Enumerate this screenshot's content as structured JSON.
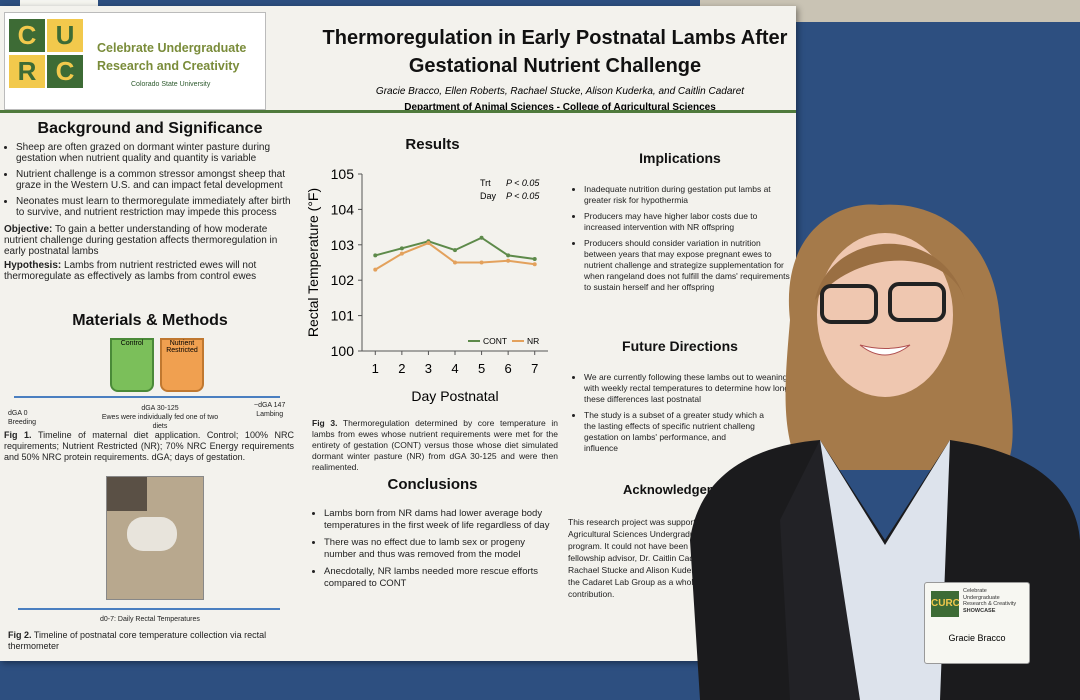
{
  "logo": {
    "letters": [
      "C",
      "U",
      "R",
      "C"
    ],
    "line1": "Celebrate Undergraduate",
    "line2": "Research and Creativity",
    "university": "Colorado State University"
  },
  "title": "Thermoregulation in Early Postnatal Lambs After Gestational Nutrient Challenge",
  "authors": "Gracie Bracco, Ellen Roberts, Rachael Stucke, Alison Kuderka, and Caitlin Cadaret",
  "department": "Department of Animal Sciences - College of Agricultural Sciences",
  "background": {
    "heading": "Background and Significance",
    "bullets": [
      "Sheep are often grazed on dormant winter pasture during gestation when nutrient quality and quantity is variable",
      "Nutrient challenge is a common stressor amongst sheep that graze in the Western U.S. and can impact fetal development",
      "Neonates must learn to thermoregulate immediately after birth to survive, and nutrient restriction may impede this process"
    ],
    "objective_label": "Objective:",
    "objective": "To gain a better understanding of how moderate nutrient challenge during gestation affects thermoregulation in early postnatal lambs",
    "hypothesis_label": "Hypothesis:",
    "hypothesis": "Lambs from nutrient restricted ewes will not thermoregulate as effectively as lambs from control ewes"
  },
  "methods": {
    "heading": "Materials & Methods",
    "buckets": [
      "Control",
      "Nutrient Restricted"
    ],
    "timeline": {
      "start": "dGA 0",
      "start_sub": "Breeding",
      "mid": "dGA 30-125",
      "mid_sub": "Ewes were individually fed one of two diets",
      "end": "~dGA 147",
      "end_sub": "Lambing"
    },
    "fig1_label": "Fig 1.",
    "fig1": "Timeline of maternal diet application. Control; 100% NRC requirements; Nutrient Restricted (NR); 70% NRC Energy requirements and 50% NRC protein requirements. dGA; days of gestation.",
    "timeline2": "d0-7: Daily Rectal Temperatures",
    "fig2_label": "Fig 2.",
    "fig2": "Timeline of postnatal core temperature collection via rectal thermometer"
  },
  "results": {
    "heading": "Results",
    "chart": {
      "type": "line",
      "x_label": "Day Postnatal",
      "y_label": "Rectal Temperature (°F)",
      "x": [
        1,
        2,
        3,
        4,
        5,
        6,
        7
      ],
      "series": [
        {
          "name": "CONT",
          "color": "#5d8a4a",
          "values": [
            102.7,
            102.9,
            103.1,
            102.85,
            103.2,
            102.7,
            102.6
          ]
        },
        {
          "name": "NR",
          "color": "#e3a15c",
          "values": [
            102.3,
            102.75,
            103.05,
            102.5,
            102.5,
            102.55,
            102.45
          ]
        }
      ],
      "annotations": [
        {
          "label": "Trt",
          "text": "P < 0.05"
        },
        {
          "label": "Day",
          "text": "P < 0.05"
        }
      ],
      "xlim": [
        0.5,
        7.5
      ],
      "xticks": [
        1,
        2,
        3,
        4,
        5,
        6,
        7
      ],
      "ylim": [
        100,
        105
      ],
      "yticks": [
        100,
        101,
        102,
        103,
        104,
        105
      ],
      "legend": "bottom-right"
    },
    "fig3_label": "Fig 3.",
    "fig3": "Thermoregulation determined by core temperature in lambs from ewes whose nutrient requirements were met for the entirety of gestation (CONT) versus those whose diet simulated dormant winter pasture (NR) from dGA 30-125 and were then realimented."
  },
  "conclusions": {
    "heading": "Conclusions",
    "bullets": [
      "Lambs born from NR dams had lower average body temperatures in the first week of life regardless of day",
      "There was no effect due to lamb sex or progeny number and thus was removed from the model",
      "Anecdotally, NR lambs needed more rescue efforts compared to CONT"
    ]
  },
  "implications": {
    "heading": "Implications",
    "bullets": [
      "Inadequate nutrition during gestation put lambs at greater risk for hypothermia",
      "Producers may have higher labor costs due to increased intervention with NR offspring",
      "Producers should consider variation in nutrition between years that may expose pregnant ewes to nutrient challenge and strategize supplementation for when rangeland does not fulfill the dams' requirements to sustain herself and her offspring"
    ]
  },
  "future": {
    "heading": "Future Directions",
    "bullets": [
      [
        "We are currently following these lambs out to weaning",
        "with weekly rectal temperatures to determine how long",
        "these differences last postnatal"
      ],
      [
        "The study is a subset of a greater study which a",
        "the lasting effects of specific nutrient challeng",
        "gestation on lambs' performance, and",
        "influence"
      ]
    ]
  },
  "acknowledgements": {
    "heading": "Acknowledgement",
    "lines": [
      "This research project was supported",
      "Agricultural Sciences Undergraduate R",
      "program. It could not have been done w",
      "fellowship advisor, Dr. Caitlin Cadare",
      "Rachael Stucke and Alison Kuderka,",
      "the Cadaret Lab Group as a whole w",
      "contribution."
    ]
  },
  "badge": {
    "letters": "CURC",
    "line1": "Celebrate",
    "line2": "Undergraduate",
    "line3": "Research & Creativity",
    "line4": "SHOWCASE",
    "name": "Gracie Bracco"
  }
}
